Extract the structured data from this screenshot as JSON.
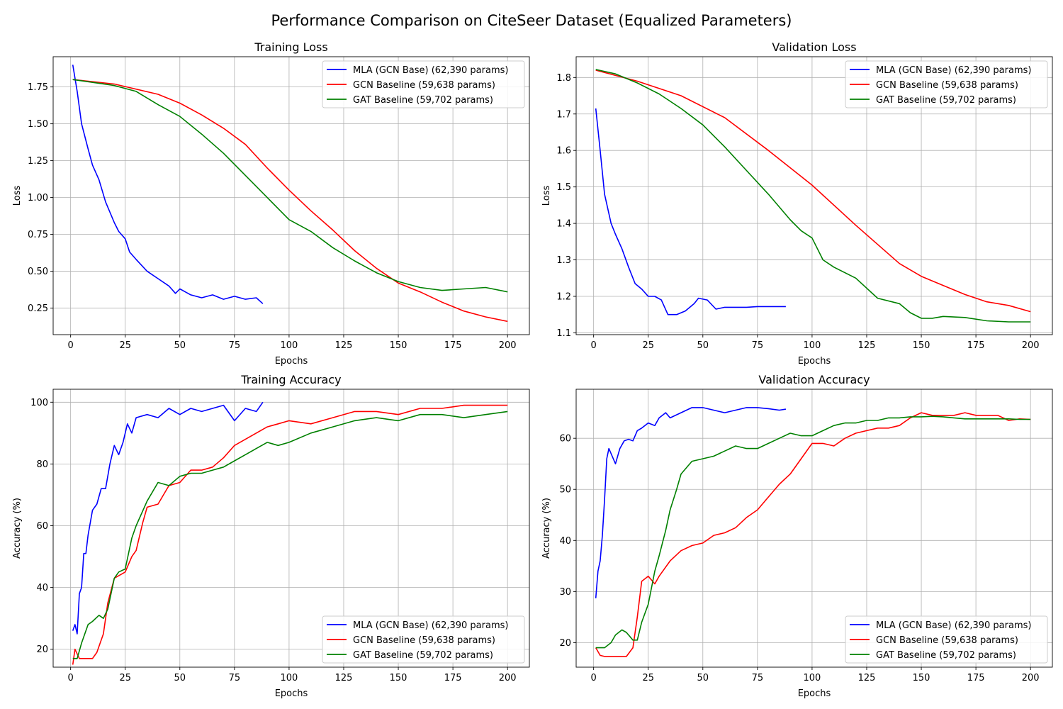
{
  "figure_title": "Performance Comparison on CiteSeer Dataset (Equalized Parameters)",
  "colors": {
    "mla": "#0000ff",
    "gcn": "#ff0000",
    "gat": "#008000",
    "grid": "#b0b0b0",
    "axis": "#000000"
  },
  "chart_data": [
    {
      "type": "line",
      "title": "Training Loss",
      "xlabel": "Epochs",
      "ylabel": "Loss",
      "xlim": [
        -8,
        210
      ],
      "ylim": [
        0.07,
        1.955
      ],
      "xticks": [
        0,
        25,
        50,
        75,
        100,
        125,
        150,
        175,
        200
      ],
      "yticks": [
        0.25,
        0.5,
        0.75,
        1.0,
        1.25,
        1.5,
        1.75
      ],
      "ytick_labels": [
        "0.25",
        "0.50",
        "0.75",
        "1.00",
        "1.25",
        "1.50",
        "1.75"
      ],
      "grid": true,
      "legend": "top-right",
      "series": [
        {
          "name": "MLA (GCN Base) (62,390 params)",
          "color": "#0000ff",
          "x": [
            1,
            3,
            5,
            8,
            10,
            13,
            16,
            20,
            22,
            25,
            27,
            30,
            35,
            40,
            45,
            48,
            50,
            55,
            60,
            65,
            70,
            75,
            80,
            85,
            88
          ],
          "y": [
            1.9,
            1.72,
            1.5,
            1.33,
            1.22,
            1.12,
            0.97,
            0.83,
            0.77,
            0.72,
            0.63,
            0.58,
            0.5,
            0.45,
            0.4,
            0.35,
            0.38,
            0.34,
            0.32,
            0.34,
            0.31,
            0.33,
            0.31,
            0.32,
            0.28
          ]
        },
        {
          "name": "GCN Baseline (59,638 params)",
          "color": "#ff0000",
          "x": [
            1,
            20,
            40,
            50,
            60,
            70,
            80,
            90,
            100,
            110,
            120,
            130,
            140,
            150,
            160,
            170,
            180,
            190,
            200
          ],
          "y": [
            1.8,
            1.77,
            1.7,
            1.64,
            1.56,
            1.47,
            1.36,
            1.2,
            1.05,
            0.91,
            0.78,
            0.64,
            0.52,
            0.42,
            0.36,
            0.29,
            0.23,
            0.19,
            0.16
          ]
        },
        {
          "name": "GAT Baseline (59,702 params)",
          "color": "#008000",
          "x": [
            1,
            20,
            30,
            40,
            50,
            60,
            70,
            80,
            90,
            100,
            110,
            120,
            130,
            140,
            150,
            160,
            170,
            180,
            190,
            200
          ],
          "y": [
            1.8,
            1.76,
            1.72,
            1.63,
            1.55,
            1.43,
            1.3,
            1.15,
            1.0,
            0.85,
            0.77,
            0.66,
            0.57,
            0.49,
            0.43,
            0.39,
            0.37,
            0.38,
            0.39,
            0.36
          ]
        }
      ]
    },
    {
      "type": "line",
      "title": "Validation Loss",
      "xlabel": "Epochs",
      "ylabel": "Loss",
      "xlim": [
        -8,
        210
      ],
      "ylim": [
        1.095,
        1.857
      ],
      "xticks": [
        0,
        25,
        50,
        75,
        100,
        125,
        150,
        175,
        200
      ],
      "yticks": [
        1.1,
        1.2,
        1.3,
        1.4,
        1.5,
        1.6,
        1.7,
        1.8
      ],
      "ytick_labels": [
        "1.1",
        "1.2",
        "1.3",
        "1.4",
        "1.5",
        "1.6",
        "1.7",
        "1.8"
      ],
      "grid": true,
      "legend": "top-right",
      "series": [
        {
          "name": "MLA (GCN Base) (62,390 params)",
          "color": "#0000ff",
          "x": [
            1,
            3,
            5,
            8,
            10,
            13,
            16,
            19,
            22,
            25,
            28,
            31,
            34,
            38,
            42,
            46,
            48,
            52,
            56,
            60,
            65,
            70,
            75,
            80,
            88
          ],
          "y": [
            1.715,
            1.6,
            1.48,
            1.4,
            1.37,
            1.33,
            1.28,
            1.235,
            1.22,
            1.2,
            1.2,
            1.19,
            1.15,
            1.15,
            1.16,
            1.18,
            1.195,
            1.19,
            1.165,
            1.17,
            1.17,
            1.17,
            1.172,
            1.172,
            1.172
          ]
        },
        {
          "name": "GCN Baseline (59,638 params)",
          "color": "#ff0000",
          "x": [
            1,
            20,
            40,
            60,
            80,
            100,
            120,
            140,
            150,
            160,
            170,
            180,
            190,
            200
          ],
          "y": [
            1.82,
            1.79,
            1.75,
            1.69,
            1.6,
            1.505,
            1.395,
            1.29,
            1.255,
            1.23,
            1.205,
            1.185,
            1.175,
            1.158
          ]
        },
        {
          "name": "GAT Baseline (59,702 params)",
          "color": "#008000",
          "x": [
            1,
            10,
            20,
            30,
            40,
            50,
            60,
            70,
            80,
            90,
            95,
            100,
            105,
            110,
            120,
            130,
            140,
            145,
            150,
            155,
            160,
            170,
            180,
            190,
            200
          ],
          "y": [
            1.822,
            1.81,
            1.785,
            1.755,
            1.715,
            1.67,
            1.61,
            1.545,
            1.48,
            1.41,
            1.38,
            1.36,
            1.3,
            1.28,
            1.25,
            1.195,
            1.18,
            1.155,
            1.14,
            1.14,
            1.145,
            1.142,
            1.133,
            1.13,
            1.13
          ]
        }
      ]
    },
    {
      "type": "line",
      "title": "Training Accuracy",
      "xlabel": "Epochs",
      "ylabel": "Accuracy (%)",
      "xlim": [
        -8,
        210
      ],
      "ylim": [
        14.2,
        104.2
      ],
      "xticks": [
        0,
        25,
        50,
        75,
        100,
        125,
        150,
        175,
        200
      ],
      "yticks": [
        20,
        40,
        60,
        80,
        100
      ],
      "ytick_labels": [
        "20",
        "40",
        "60",
        "80",
        "100"
      ],
      "grid": true,
      "legend": "bottom-right",
      "series": [
        {
          "name": "MLA (GCN Base) (62,390 params)",
          "color": "#0000ff",
          "x": [
            1,
            2,
            3,
            4,
            5,
            6,
            7,
            8,
            10,
            12,
            14,
            16,
            18,
            20,
            22,
            24,
            26,
            28,
            30,
            35,
            40,
            45,
            50,
            55,
            60,
            65,
            70,
            75,
            80,
            85,
            88
          ],
          "y": [
            26,
            28,
            25,
            38,
            40,
            51,
            51,
            57,
            65,
            67,
            72,
            72,
            80,
            86,
            83,
            87,
            93,
            90,
            95,
            96,
            95,
            98,
            96,
            98,
            97,
            98,
            99,
            94,
            98,
            97,
            100
          ]
        },
        {
          "name": "GCN Baseline (59,638 params)",
          "color": "#ff0000",
          "x": [
            1,
            2,
            4,
            10,
            12,
            15,
            17,
            20,
            25,
            28,
            30,
            33,
            35,
            40,
            45,
            50,
            55,
            60,
            65,
            70,
            75,
            80,
            85,
            90,
            95,
            100,
            110,
            120,
            130,
            140,
            150,
            160,
            170,
            180,
            190,
            200
          ],
          "y": [
            15,
            20,
            17,
            17,
            19,
            25,
            35,
            43,
            45,
            50,
            52,
            61,
            66,
            67,
            73,
            74,
            78,
            78,
            79,
            82,
            86,
            88,
            90,
            92,
            93,
            94,
            93,
            95,
            97,
            97,
            96,
            98,
            98,
            99,
            99,
            99
          ]
        },
        {
          "name": "GAT Baseline (59,702 params)",
          "color": "#008000",
          "x": [
            1,
            3,
            5,
            8,
            10,
            13,
            15,
            17,
            20,
            22,
            25,
            28,
            30,
            35,
            40,
            45,
            50,
            55,
            60,
            65,
            70,
            75,
            80,
            85,
            90,
            95,
            100,
            110,
            120,
            130,
            140,
            150,
            160,
            170,
            180,
            190,
            200
          ],
          "y": [
            17,
            17,
            22,
            28,
            29,
            31,
            30,
            33,
            43,
            45,
            46,
            56,
            60,
            68,
            74,
            73,
            76,
            77,
            77,
            78,
            79,
            81,
            83,
            85,
            87,
            86,
            87,
            90,
            92,
            94,
            95,
            94,
            96,
            96,
            95,
            96,
            97
          ]
        }
      ]
    },
    {
      "type": "line",
      "title": "Validation Accuracy",
      "xlabel": "Epochs",
      "ylabel": "Accuracy (%)",
      "xlim": [
        -8,
        210
      ],
      "ylim": [
        15.2,
        69.6
      ],
      "xticks": [
        0,
        25,
        50,
        75,
        100,
        125,
        150,
        175,
        200
      ],
      "yticks": [
        20,
        30,
        40,
        50,
        60
      ],
      "ytick_labels": [
        "20",
        "30",
        "40",
        "50",
        "60"
      ],
      "grid": true,
      "legend": "bottom-right",
      "series": [
        {
          "name": "MLA (GCN Base) (62,390 params)",
          "color": "#0000ff",
          "x": [
            1,
            2,
            3,
            4,
            5,
            6,
            7,
            8,
            10,
            12,
            14,
            16,
            18,
            20,
            22,
            25,
            28,
            30,
            33,
            35,
            40,
            45,
            50,
            55,
            60,
            65,
            70,
            75,
            80,
            85,
            88
          ],
          "y": [
            28.7,
            34,
            36,
            41,
            48,
            56,
            58,
            57,
            55,
            58,
            59.5,
            59.8,
            59.5,
            61.5,
            62,
            63,
            62.5,
            64,
            65,
            64,
            65,
            66,
            66,
            65.5,
            65,
            65.5,
            66,
            66,
            65.8,
            65.5,
            65.7
          ]
        },
        {
          "name": "GCN Baseline (59,638 params)",
          "color": "#ff0000",
          "x": [
            1,
            3,
            5,
            10,
            15,
            18,
            20,
            22,
            25,
            28,
            30,
            35,
            40,
            45,
            50,
            55,
            60,
            65,
            70,
            75,
            80,
            85,
            90,
            95,
            100,
            105,
            110,
            115,
            120,
            125,
            130,
            135,
            140,
            145,
            150,
            155,
            160,
            165,
            170,
            175,
            180,
            185,
            190,
            195,
            200
          ],
          "y": [
            19,
            17.5,
            17.3,
            17.3,
            17.3,
            19,
            25,
            32,
            33,
            31.5,
            33,
            36,
            38,
            39,
            39.5,
            41,
            41.5,
            42.5,
            44.5,
            46,
            48.5,
            51,
            53,
            56,
            59,
            59,
            58.5,
            60,
            61,
            61.5,
            62,
            62,
            62.5,
            64,
            65,
            64.5,
            64.5,
            64.5,
            65,
            64.5,
            64.5,
            64.5,
            63.5,
            63.8,
            63.7
          ]
        },
        {
          "name": "GAT Baseline (59,702 params)",
          "color": "#008000",
          "x": [
            1,
            5,
            8,
            10,
            13,
            15,
            18,
            20,
            22,
            25,
            28,
            30,
            33,
            35,
            38,
            40,
            45,
            50,
            55,
            60,
            65,
            70,
            75,
            80,
            85,
            90,
            95,
            100,
            105,
            110,
            115,
            120,
            125,
            130,
            135,
            140,
            145,
            150,
            155,
            160,
            165,
            170,
            175,
            180,
            185,
            190,
            195,
            200
          ],
          "y": [
            19,
            19,
            20,
            21.5,
            22.5,
            22,
            20.5,
            20.5,
            24,
            27.5,
            34,
            37,
            42,
            46,
            50,
            53,
            55.5,
            56,
            56.5,
            57.5,
            58.5,
            58,
            58,
            59,
            60,
            61,
            60.5,
            60.5,
            61.5,
            62.5,
            63,
            63,
            63.5,
            63.5,
            64,
            64,
            64.2,
            64.2,
            64.3,
            64.2,
            64,
            63.8,
            63.8,
            63.8,
            63.8,
            63.8,
            63.7,
            63.7
          ]
        }
      ]
    }
  ]
}
